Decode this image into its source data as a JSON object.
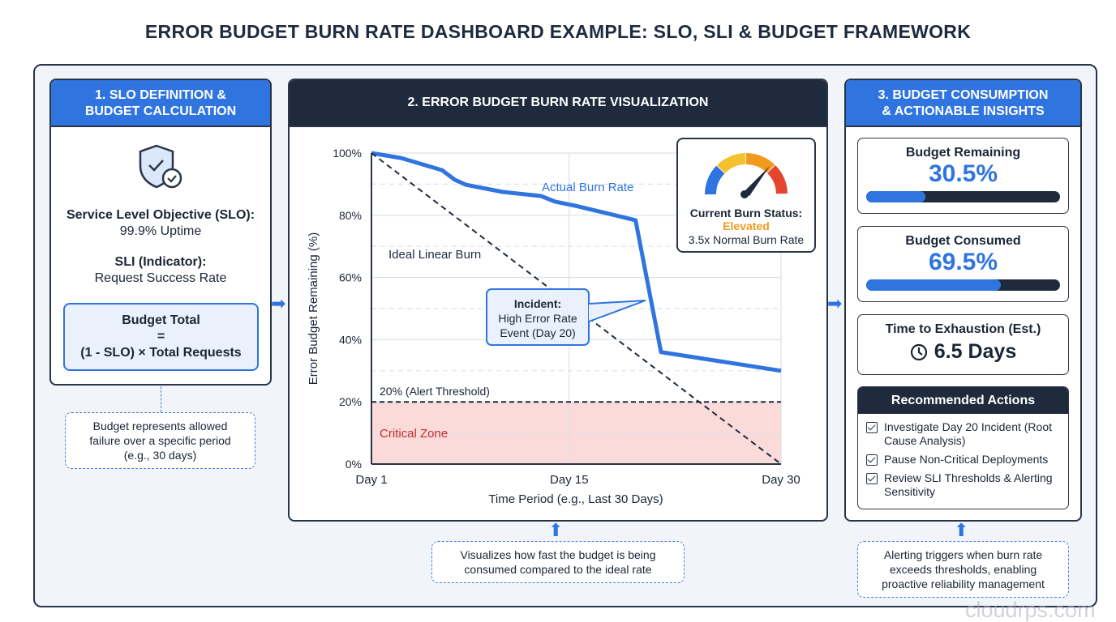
{
  "title": "ERROR BUDGET BURN RATE DASHBOARD EXAMPLE: SLO, SLI & BUDGET FRAMEWORK",
  "panel1": {
    "header": [
      "1. SLO DEFINITION &",
      "BUDGET CALCULATION"
    ],
    "icon": "shield-check-icon",
    "slo_label": "Service Level Objective (SLO):",
    "slo_value": "99.9% Uptime",
    "sli_label": "SLI (Indicator):",
    "sli_value": "Request Success Rate",
    "formula_title": "Budget Total",
    "formula_eq": "=",
    "formula": "(1 - SLO) × Total Requests",
    "note": "Budget represents allowed failure over a specific period (e.g., 30 days)"
  },
  "panel2": {
    "header": "2. ERROR BUDGET BURN RATE VISUALIZATION",
    "gauge": {
      "label": "Current Burn Status:",
      "status": "Elevated",
      "status_color": "#f29a1c",
      "detail": "3.5x Normal Burn Rate",
      "colors": [
        "#2f74df",
        "#f5c131",
        "#f29a1c",
        "#e5452f"
      ]
    },
    "callout": {
      "title": "Incident:",
      "text": [
        "High Error Rate",
        "Event (Day 20)"
      ]
    },
    "note": "Visualizes how fast the budget is being consumed compared to the ideal rate"
  },
  "chart_data": {
    "type": "line",
    "xlabel": "Time Period (e.g., Last 30 Days)",
    "ylabel": "Error Budget Remaining (%)",
    "xlim": [
      1,
      30
    ],
    "ylim": [
      0,
      100
    ],
    "xticks": [
      {
        "v": 1,
        "label": "Day 1"
      },
      {
        "v": 15,
        "label": "Day 15"
      },
      {
        "v": 30,
        "label": "Day 30"
      }
    ],
    "yticks": [
      {
        "v": 0,
        "label": "0%"
      },
      {
        "v": 20,
        "label": "20%"
      },
      {
        "v": 40,
        "label": "40%"
      },
      {
        "v": 60,
        "label": "60%"
      },
      {
        "v": 80,
        "label": "80%"
      },
      {
        "v": 100,
        "label": "100%"
      }
    ],
    "series": [
      {
        "name": "Actual Burn Rate",
        "color": "#2f74df",
        "x": [
          1,
          3.1,
          6,
          6.9,
          7.7,
          10.3,
          13,
          14,
          15.5,
          19.7,
          21.5,
          30
        ],
        "y": [
          100,
          98.4,
          94.5,
          91.4,
          89.8,
          87.5,
          86.2,
          84.4,
          83,
          78.4,
          36,
          30
        ]
      },
      {
        "name": "Ideal Linear Burn",
        "color": "#1f2a3c",
        "dashed": true,
        "x": [
          1,
          30
        ],
        "y": [
          100,
          0
        ]
      }
    ],
    "threshold": {
      "value": 20,
      "label": "20% (Alert Threshold)"
    },
    "zone": {
      "label": "Critical Zone",
      "from": 0,
      "to": 20,
      "color": "#fbdada"
    }
  },
  "panel3": {
    "header": [
      "3. BUDGET CONSUMPTION",
      "& ACTIONABLE INSIGHTS"
    ],
    "remaining": {
      "label": "Budget Remaining",
      "value": "30.5%",
      "percent": 30.5
    },
    "consumed": {
      "label": "Budget Consumed",
      "value": "69.5%",
      "percent": 69.5
    },
    "exhaustion": {
      "label": "Time to Exhaustion (Est.)",
      "value": "6.5 Days",
      "icon": "clock-icon"
    },
    "actions_title": "Recommended Actions",
    "actions": [
      "Investigate Day 20 Incident (Root Cause Analysis)",
      "Pause Non-Critical Deployments",
      "Review SLI Thresholds & Alerting Sensitivity"
    ],
    "note": "Alerting triggers when burn rate exceeds thresholds, enabling proactive reliability management"
  },
  "watermark": "cloudrps.com"
}
